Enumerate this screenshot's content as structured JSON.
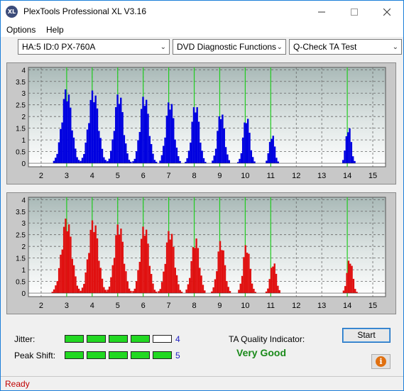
{
  "window": {
    "title": "PlexTools Professional XL V3.16",
    "icon_text": "XL"
  },
  "menu": {
    "items": [
      "Options",
      "Help"
    ]
  },
  "toolbar": {
    "drive": "HA:5 ID:0  PX-760A",
    "function": "DVD Diagnostic Functions",
    "test": "Q-Check TA Test"
  },
  "colors": {
    "top_bars": "#0000e0",
    "bottom_bars": "#e01010",
    "peak_lines": "#22cc22",
    "accent": "#1c7fd9"
  },
  "chart_data": [
    {
      "type": "bar",
      "name": "land-ta-histogram",
      "x_ticks": [
        "2",
        "3",
        "4",
        "5",
        "6",
        "7",
        "8",
        "9",
        "10",
        "11",
        "12",
        "13",
        "14",
        "15"
      ],
      "y_ticks": [
        "0",
        "0.5",
        "1",
        "1.5",
        "2",
        "2.5",
        "3",
        "3.5",
        "4"
      ],
      "xlim": [
        1.5,
        15.5
      ],
      "ylim": [
        -0.15,
        4.1
      ],
      "peak_markers": [
        3,
        4,
        5,
        6,
        7,
        8,
        9,
        10,
        11,
        14
      ],
      "bar_color": "#0000e0",
      "peaks": [
        {
          "center": 3.0,
          "height": 3.25,
          "width": 0.34
        },
        {
          "center": 4.05,
          "height": 3.2,
          "width": 0.34
        },
        {
          "center": 5.05,
          "height": 3.1,
          "width": 0.3
        },
        {
          "center": 6.05,
          "height": 3.0,
          "width": 0.3
        },
        {
          "center": 7.05,
          "height": 2.8,
          "width": 0.28
        },
        {
          "center": 8.05,
          "height": 2.65,
          "width": 0.26
        },
        {
          "center": 9.05,
          "height": 2.3,
          "width": 0.24
        },
        {
          "center": 10.05,
          "height": 2.1,
          "width": 0.22
        },
        {
          "center": 11.05,
          "height": 1.3,
          "width": 0.18
        },
        {
          "center": 14.05,
          "height": 1.65,
          "width": 0.18
        }
      ]
    },
    {
      "type": "bar",
      "name": "pit-ta-histogram",
      "x_ticks": [
        "2",
        "3",
        "4",
        "5",
        "6",
        "7",
        "8",
        "9",
        "10",
        "11",
        "12",
        "13",
        "14",
        "15"
      ],
      "y_ticks": [
        "0",
        "0.5",
        "1",
        "1.5",
        "2",
        "2.5",
        "3",
        "3.5",
        "4"
      ],
      "xlim": [
        1.5,
        15.5
      ],
      "ylim": [
        -0.15,
        4.1
      ],
      "peak_markers": [
        3,
        4,
        5,
        6,
        7,
        8,
        9,
        10,
        11,
        14
      ],
      "bar_color": "#e01010",
      "peaks": [
        {
          "center": 3.0,
          "height": 3.25,
          "width": 0.36
        },
        {
          "center": 4.05,
          "height": 3.2,
          "width": 0.34
        },
        {
          "center": 5.05,
          "height": 3.05,
          "width": 0.32
        },
        {
          "center": 6.05,
          "height": 3.0,
          "width": 0.3
        },
        {
          "center": 7.05,
          "height": 2.8,
          "width": 0.3
        },
        {
          "center": 8.05,
          "height": 2.4,
          "width": 0.27
        },
        {
          "center": 9.05,
          "height": 2.3,
          "width": 0.25
        },
        {
          "center": 10.05,
          "height": 2.15,
          "width": 0.23
        },
        {
          "center": 11.1,
          "height": 1.4,
          "width": 0.2
        },
        {
          "center": 14.1,
          "height": 1.55,
          "width": 0.19
        }
      ]
    }
  ],
  "metrics": {
    "jitter": {
      "label": "Jitter:",
      "value": "4",
      "level": 4,
      "max": 5
    },
    "peak_shift": {
      "label": "Peak Shift:",
      "value": "5",
      "level": 5,
      "max": 5
    }
  },
  "quality": {
    "label": "TA Quality Indicator:",
    "value": "Very Good"
  },
  "buttons": {
    "start": "Start",
    "info_icon": "info-icon"
  },
  "status": {
    "text": "Ready"
  }
}
